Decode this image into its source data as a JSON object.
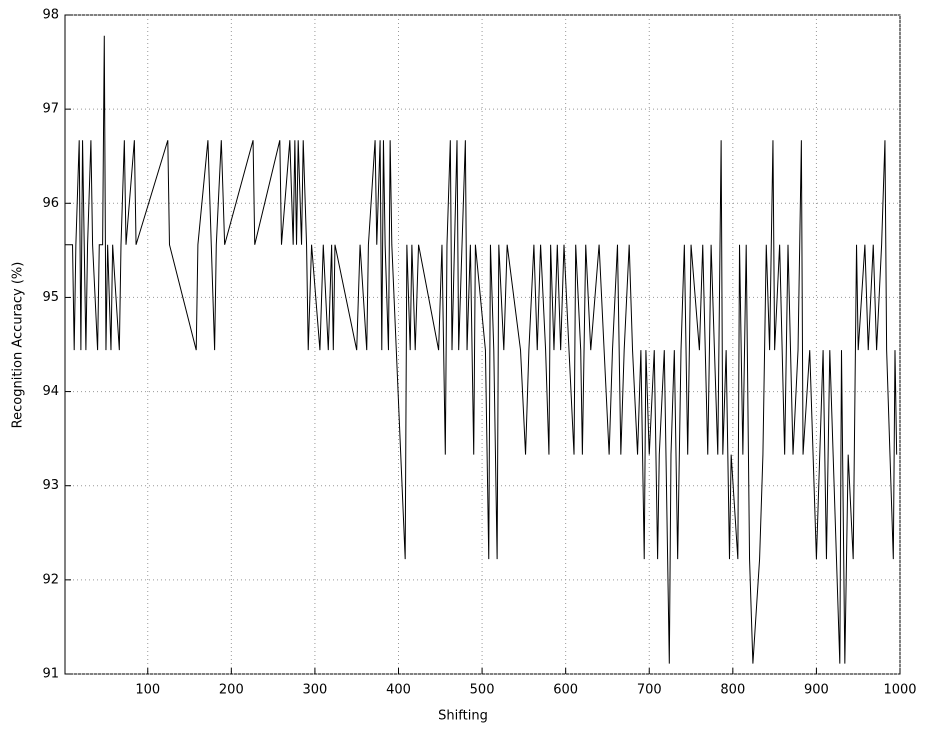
{
  "chart_data": {
    "type": "line",
    "xlabel": "Shifting",
    "ylabel": "Recognition Accuracy (%)",
    "x": [
      1,
      10,
      12,
      14,
      18,
      20,
      22,
      24,
      26,
      28,
      32,
      34,
      40,
      42,
      46,
      48,
      50,
      52,
      56,
      58,
      66,
      68,
      72,
      74,
      84,
      86,
      124,
      126,
      158,
      160,
      172,
      176,
      180,
      182,
      188,
      192,
      226,
      228,
      258,
      260,
      270,
      274,
      276,
      278,
      280,
      284,
      286,
      290,
      292,
      296,
      306,
      310,
      316,
      320,
      322,
      324,
      350,
      354,
      362,
      364,
      372,
      374,
      378,
      380,
      382,
      384,
      388,
      390,
      392,
      408,
      410,
      414,
      416,
      420,
      424,
      448,
      452,
      456,
      458,
      462,
      464,
      470,
      472,
      476,
      480,
      482,
      486,
      490,
      492,
      504,
      508,
      510,
      514,
      518,
      520,
      526,
      530,
      546,
      552,
      556,
      562,
      566,
      570,
      576,
      580,
      582,
      586,
      590,
      594,
      598,
      604,
      610,
      612,
      618,
      620,
      624,
      630,
      640,
      646,
      652,
      656,
      662,
      666,
      670,
      676,
      680,
      686,
      690,
      694,
      696,
      700,
      706,
      710,
      712,
      718,
      722,
      724,
      726,
      730,
      734,
      738,
      742,
      746,
      750,
      760,
      764,
      770,
      774,
      778,
      782,
      786,
      788,
      792,
      796,
      798,
      806,
      808,
      812,
      816,
      820,
      824,
      832,
      836,
      840,
      844,
      848,
      850,
      856,
      862,
      866,
      872,
      878,
      882,
      884,
      892,
      896,
      900,
      904,
      908,
      912,
      916,
      920,
      924,
      928,
      930,
      934,
      938,
      944,
      948,
      950,
      958,
      962,
      968,
      972,
      978,
      982,
      984,
      988,
      992,
      994,
      996
    ],
    "series": [
      {
        "color": "#000000",
        "values": [
          95.56,
          95.56,
          94.44,
          95.56,
          96.67,
          94.44,
          96.67,
          95.56,
          94.44,
          95.56,
          96.67,
          95.56,
          94.44,
          95.56,
          95.56,
          97.78,
          94.44,
          95.56,
          94.44,
          95.56,
          94.44,
          95.56,
          96.67,
          95.56,
          96.67,
          95.56,
          96.67,
          95.56,
          94.44,
          95.56,
          96.67,
          95.56,
          94.44,
          95.56,
          96.67,
          95.56,
          96.67,
          95.56,
          96.67,
          95.56,
          96.67,
          95.56,
          96.67,
          95.56,
          96.67,
          95.56,
          96.67,
          95.56,
          94.44,
          95.56,
          94.44,
          95.56,
          94.44,
          95.56,
          94.44,
          95.56,
          94.44,
          95.56,
          94.44,
          95.56,
          96.67,
          95.56,
          96.67,
          94.44,
          96.67,
          95.56,
          94.44,
          96.67,
          95.56,
          92.22,
          95.56,
          94.44,
          95.56,
          94.44,
          95.56,
          94.44,
          95.56,
          93.33,
          95.56,
          96.67,
          94.44,
          96.67,
          94.44,
          95.56,
          96.67,
          94.44,
          95.56,
          93.33,
          95.56,
          94.44,
          92.22,
          95.56,
          94.44,
          92.22,
          95.56,
          94.44,
          95.56,
          94.44,
          93.33,
          94.44,
          95.56,
          94.44,
          95.56,
          94.44,
          93.33,
          95.56,
          94.44,
          95.56,
          94.44,
          95.56,
          94.44,
          93.33,
          95.56,
          94.44,
          93.33,
          95.56,
          94.44,
          95.56,
          94.44,
          93.33,
          94.44,
          95.56,
          93.33,
          94.44,
          95.56,
          94.44,
          93.33,
          94.44,
          92.22,
          94.44,
          93.33,
          94.44,
          92.22,
          93.33,
          94.44,
          92.22,
          91.11,
          93.33,
          94.44,
          92.22,
          94.44,
          95.56,
          93.33,
          95.56,
          94.44,
          95.56,
          93.33,
          95.56,
          94.44,
          93.33,
          96.67,
          93.33,
          94.44,
          92.22,
          93.33,
          92.22,
          95.56,
          93.33,
          95.56,
          92.22,
          91.11,
          92.22,
          93.33,
          95.56,
          94.44,
          96.67,
          94.44,
          95.56,
          93.33,
          95.56,
          93.33,
          94.44,
          96.67,
          93.33,
          94.44,
          93.33,
          92.22,
          93.33,
          94.44,
          92.22,
          94.44,
          93.33,
          92.22,
          91.11,
          94.44,
          91.11,
          93.33,
          92.22,
          95.56,
          94.44,
          95.56,
          94.44,
          95.56,
          94.44,
          95.56,
          96.67,
          94.44,
          93.33,
          92.22,
          94.44,
          93.33
        ]
      }
    ],
    "xlim": [
      1,
      1000
    ],
    "xticks": [
      100,
      200,
      300,
      400,
      500,
      600,
      700,
      800,
      900,
      1000
    ],
    "ylim": [
      91,
      98
    ],
    "yticks": [
      91,
      92,
      93,
      94,
      95,
      96,
      97,
      98
    ],
    "grid": true
  }
}
